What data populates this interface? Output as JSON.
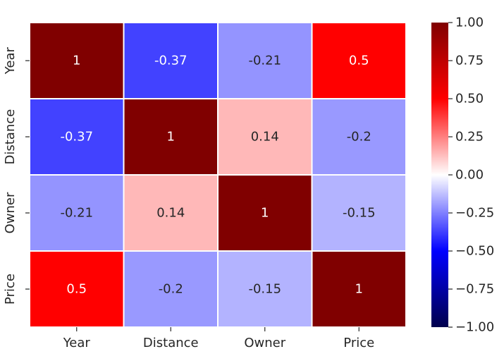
{
  "chart_data": {
    "type": "heatmap",
    "title": "",
    "xlabel": "",
    "ylabel": "",
    "x_categories": [
      "Year",
      "Distance",
      "Owner",
      "Price"
    ],
    "y_categories": [
      "Year",
      "Distance",
      "Owner",
      "Price"
    ],
    "values": [
      [
        1,
        -0.37,
        -0.21,
        0.5
      ],
      [
        -0.37,
        1,
        0.14,
        -0.2
      ],
      [
        -0.21,
        0.14,
        1,
        -0.15
      ],
      [
        0.5,
        -0.2,
        -0.15,
        1
      ]
    ],
    "value_labels": [
      [
        "1",
        "-0.37",
        "-0.21",
        "0.5"
      ],
      [
        "-0.37",
        "1",
        "0.14",
        "-0.2"
      ],
      [
        "-0.21",
        "0.14",
        "1",
        "-0.15"
      ],
      [
        "0.5",
        "-0.2",
        "-0.15",
        "1"
      ]
    ],
    "colormap": "seismic",
    "vmin": -1.0,
    "vmax": 1.0,
    "colorbar": {
      "ticks": [
        1.0,
        0.75,
        0.5,
        0.25,
        0.0,
        -0.25,
        -0.5,
        -0.75,
        -1.0
      ],
      "tick_labels": [
        "1.00",
        "0.75",
        "0.50",
        "0.25",
        "0.00",
        "−0.25",
        "−0.50",
        "−0.75",
        "−1.00"
      ],
      "placement": "right"
    },
    "cell_border_color": "#ffffff"
  }
}
